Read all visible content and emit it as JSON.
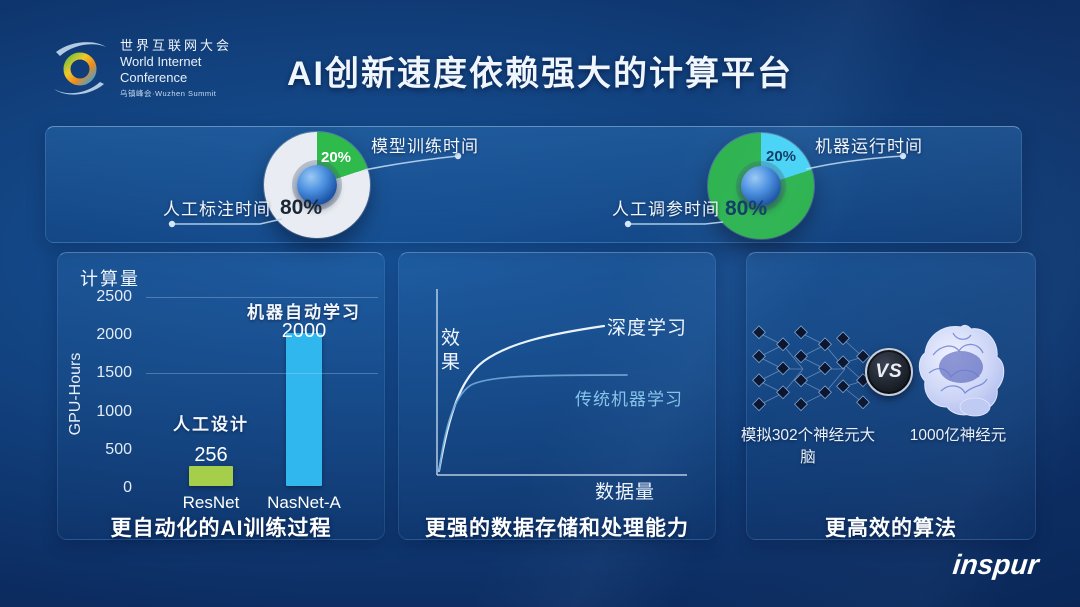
{
  "title": "AI创新速度依赖强大的计算平台",
  "logo": {
    "cn": "世界互联网大会",
    "en1": "World Internet",
    "en2": "Conference",
    "sub": "乌镇峰会·Wuzhen Summit"
  },
  "brand": "inspur",
  "captions": [
    "更自动化的AI训练过程",
    "更强的数据存储和处理能力",
    "更高效的算法"
  ],
  "comparison": {
    "left_label": "模拟302个神经元大脑",
    "vs": "VS",
    "right_label": "1000亿神经元"
  },
  "chart_data": [
    {
      "type": "pie",
      "name": "training-time-share",
      "slices": [
        {
          "label": "人工标注时间",
          "value": 80,
          "pct": "80%",
          "color": "#e9edf3",
          "pct_color": "#1a2736"
        },
        {
          "label": "模型训练时间",
          "value": 20,
          "pct": "20%",
          "color": "#2fbb4c",
          "pct_color": "#ffffff"
        }
      ],
      "legend_position": "callout-lines",
      "center_icon": "globe"
    },
    {
      "type": "pie",
      "name": "tuning-time-share",
      "slices": [
        {
          "label": "人工调参时间",
          "value": 80,
          "pct": "80%",
          "color": "#2db44e",
          "pct_color": "#0e3a63"
        },
        {
          "label": "机器运行时间",
          "value": 20,
          "pct": "20%",
          "color": "#49d4f6",
          "pct_color": "#0e3a63"
        }
      ],
      "legend_position": "callout-lines",
      "center_icon": "globe"
    },
    {
      "type": "bar",
      "title": "计算量",
      "ylabel": "GPU-Hours",
      "xlabel": "",
      "ylim": [
        0,
        2500
      ],
      "yticks": [
        2500,
        2000,
        1500,
        1000,
        500,
        0
      ],
      "gridlines": [
        2500,
        1500
      ],
      "categories": [
        "ResNet",
        "NasNet-A"
      ],
      "values": [
        256,
        2000
      ],
      "value_labels": [
        "256",
        "2000"
      ],
      "colors": [
        "#a5cf4b",
        "#2fb7ee"
      ],
      "annotations": [
        "人工设计",
        "机器自动学习"
      ],
      "grid": "partial"
    },
    {
      "type": "line",
      "xlabel": "数据量",
      "ylabel": "效果",
      "series": [
        {
          "name": "深度学习",
          "color": "#eaf3fc",
          "trend": "随数据量增加效果持续上升"
        },
        {
          "name": "传统机器学习",
          "color": "#85c4ea",
          "trend": "快速上升后趋于平缓"
        }
      ],
      "grid": false
    }
  ]
}
